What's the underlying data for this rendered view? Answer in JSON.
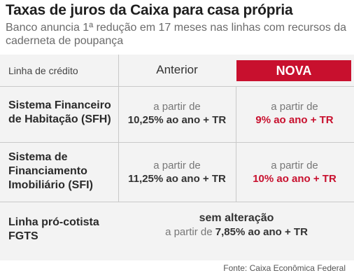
{
  "title": "Taxas de juros da Caixa para casa própria",
  "subtitle": "Banco anuncia 1ª redução em 17 meses nas linhas com recursos da caderneta de poupança",
  "table": {
    "header": {
      "label": "Linha de crédito",
      "anterior": "Anterior",
      "nova": "NOVA"
    },
    "rows": [
      {
        "label_line1": "Sistema Financeiro",
        "label_line2": "de Habitação (SFH)",
        "anterior_prefix": "a partir de",
        "anterior_value": "10,25% ao ano + TR",
        "nova_prefix": "a partir de",
        "nova_value": "9% ao ano + TR"
      },
      {
        "label_line1": "Sistema de",
        "label_line2": "Financiamento",
        "label_line3": "Imobiliário (SFI)",
        "anterior_prefix": "a partir de",
        "anterior_value": "11,25% ao ano + TR",
        "nova_prefix": "a partir de",
        "nova_value": "10% ao ano + TR"
      },
      {
        "label_line1": "Linha pró-cotista",
        "label_line2": "FGTS",
        "merged_head": "sem alteração",
        "merged_prefix": "a partir de",
        "merged_value": "7,85% ao ano + TR"
      }
    ]
  },
  "source": "Fonte: Caixa Econômica Federal",
  "colors": {
    "accent_red": "#c8102e",
    "table_bg": "#f3f3f3"
  }
}
